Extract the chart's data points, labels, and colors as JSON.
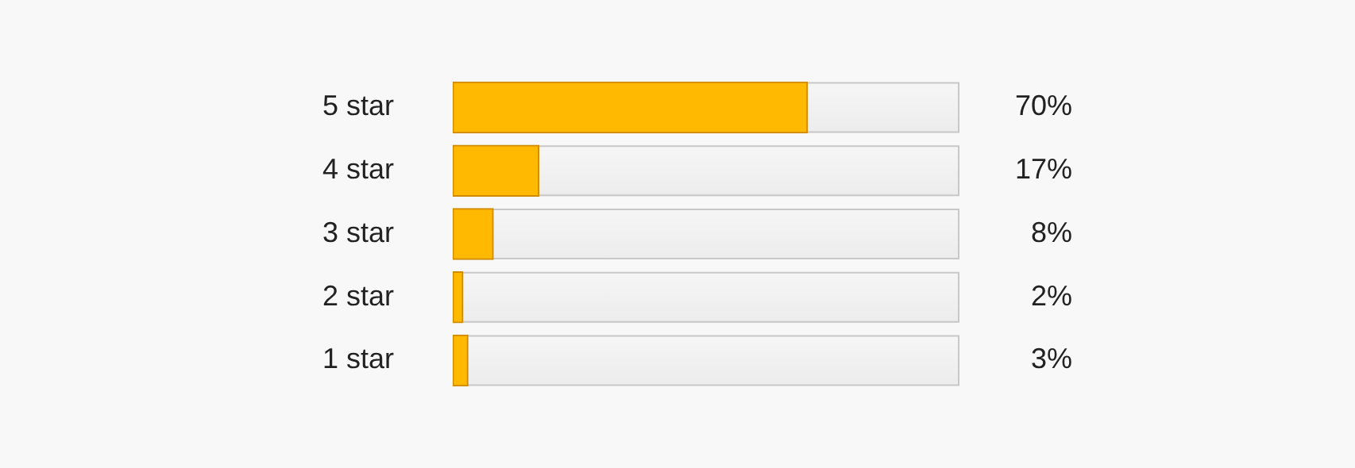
{
  "chart_data": {
    "type": "bar",
    "orientation": "horizontal",
    "categories": [
      "5 star",
      "4 star",
      "3 star",
      "2 star",
      "1 star"
    ],
    "values": [
      70,
      17,
      8,
      2,
      3
    ],
    "color": "#ffb900",
    "value_labels": [
      "70%",
      "17%",
      "8%",
      "2%",
      "3%"
    ],
    "xlim": [
      0,
      100
    ],
    "tick_labels": "y"
  }
}
